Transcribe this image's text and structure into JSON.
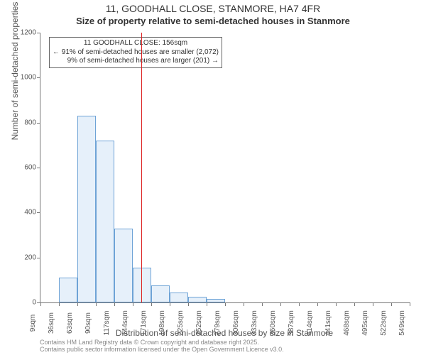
{
  "title": "11, GOODHALL CLOSE, STANMORE, HA7 4FR",
  "subtitle": "Size of property relative to semi-detached houses in Stanmore",
  "y_axis_label": "Number of semi-detached properties",
  "x_axis_label": "Distribution of semi-detached houses by size in Stanmore",
  "footer_line1": "Contains HM Land Registry data © Crown copyright and database right 2025.",
  "footer_line2": "Contains public sector information licensed under the Open Government Licence v3.0.",
  "chart": {
    "type": "histogram",
    "background_color": "#ffffff",
    "axis_color": "#777777",
    "bar_fill": "#e6f0fa",
    "bar_stroke": "#6ea3d6",
    "marker_line_color": "#d22",
    "y": {
      "min": 0,
      "max": 1200,
      "step": 200
    },
    "x_ticks": [
      "9sqm",
      "36sqm",
      "63sqm",
      "90sqm",
      "117sqm",
      "144sqm",
      "171sqm",
      "198sqm",
      "225sqm",
      "252sqm",
      "279sqm",
      "306sqm",
      "333sqm",
      "360sqm",
      "387sqm",
      "414sqm",
      "441sqm",
      "468sqm",
      "495sqm",
      "522sqm",
      "549sqm"
    ],
    "x_min": 9,
    "x_max": 549,
    "bar_bin_width": 27,
    "bars": [
      {
        "x0": 36,
        "count": 110
      },
      {
        "x0": 63,
        "count": 830
      },
      {
        "x0": 90,
        "count": 720
      },
      {
        "x0": 117,
        "count": 330
      },
      {
        "x0": 144,
        "count": 155
      },
      {
        "x0": 171,
        "count": 75
      },
      {
        "x0": 198,
        "count": 45
      },
      {
        "x0": 225,
        "count": 25
      },
      {
        "x0": 252,
        "count": 15
      },
      {
        "x0": 279,
        "count": 0
      },
      {
        "x0": 306,
        "count": 0
      },
      {
        "x0": 333,
        "count": 0
      },
      {
        "x0": 360,
        "count": 0
      },
      {
        "x0": 387,
        "count": 0
      },
      {
        "x0": 414,
        "count": 0
      },
      {
        "x0": 441,
        "count": 0
      },
      {
        "x0": 468,
        "count": 0
      },
      {
        "x0": 495,
        "count": 0
      },
      {
        "x0": 522,
        "count": 0
      }
    ],
    "marker_x": 156,
    "annotation": {
      "line1": "11 GOODHALL CLOSE: 156sqm",
      "line2": "← 91% of semi-detached houses are smaller (2,072)",
      "line3": "9% of semi-detached houses are larger (201) →"
    },
    "anno_fontsize": 10
  }
}
